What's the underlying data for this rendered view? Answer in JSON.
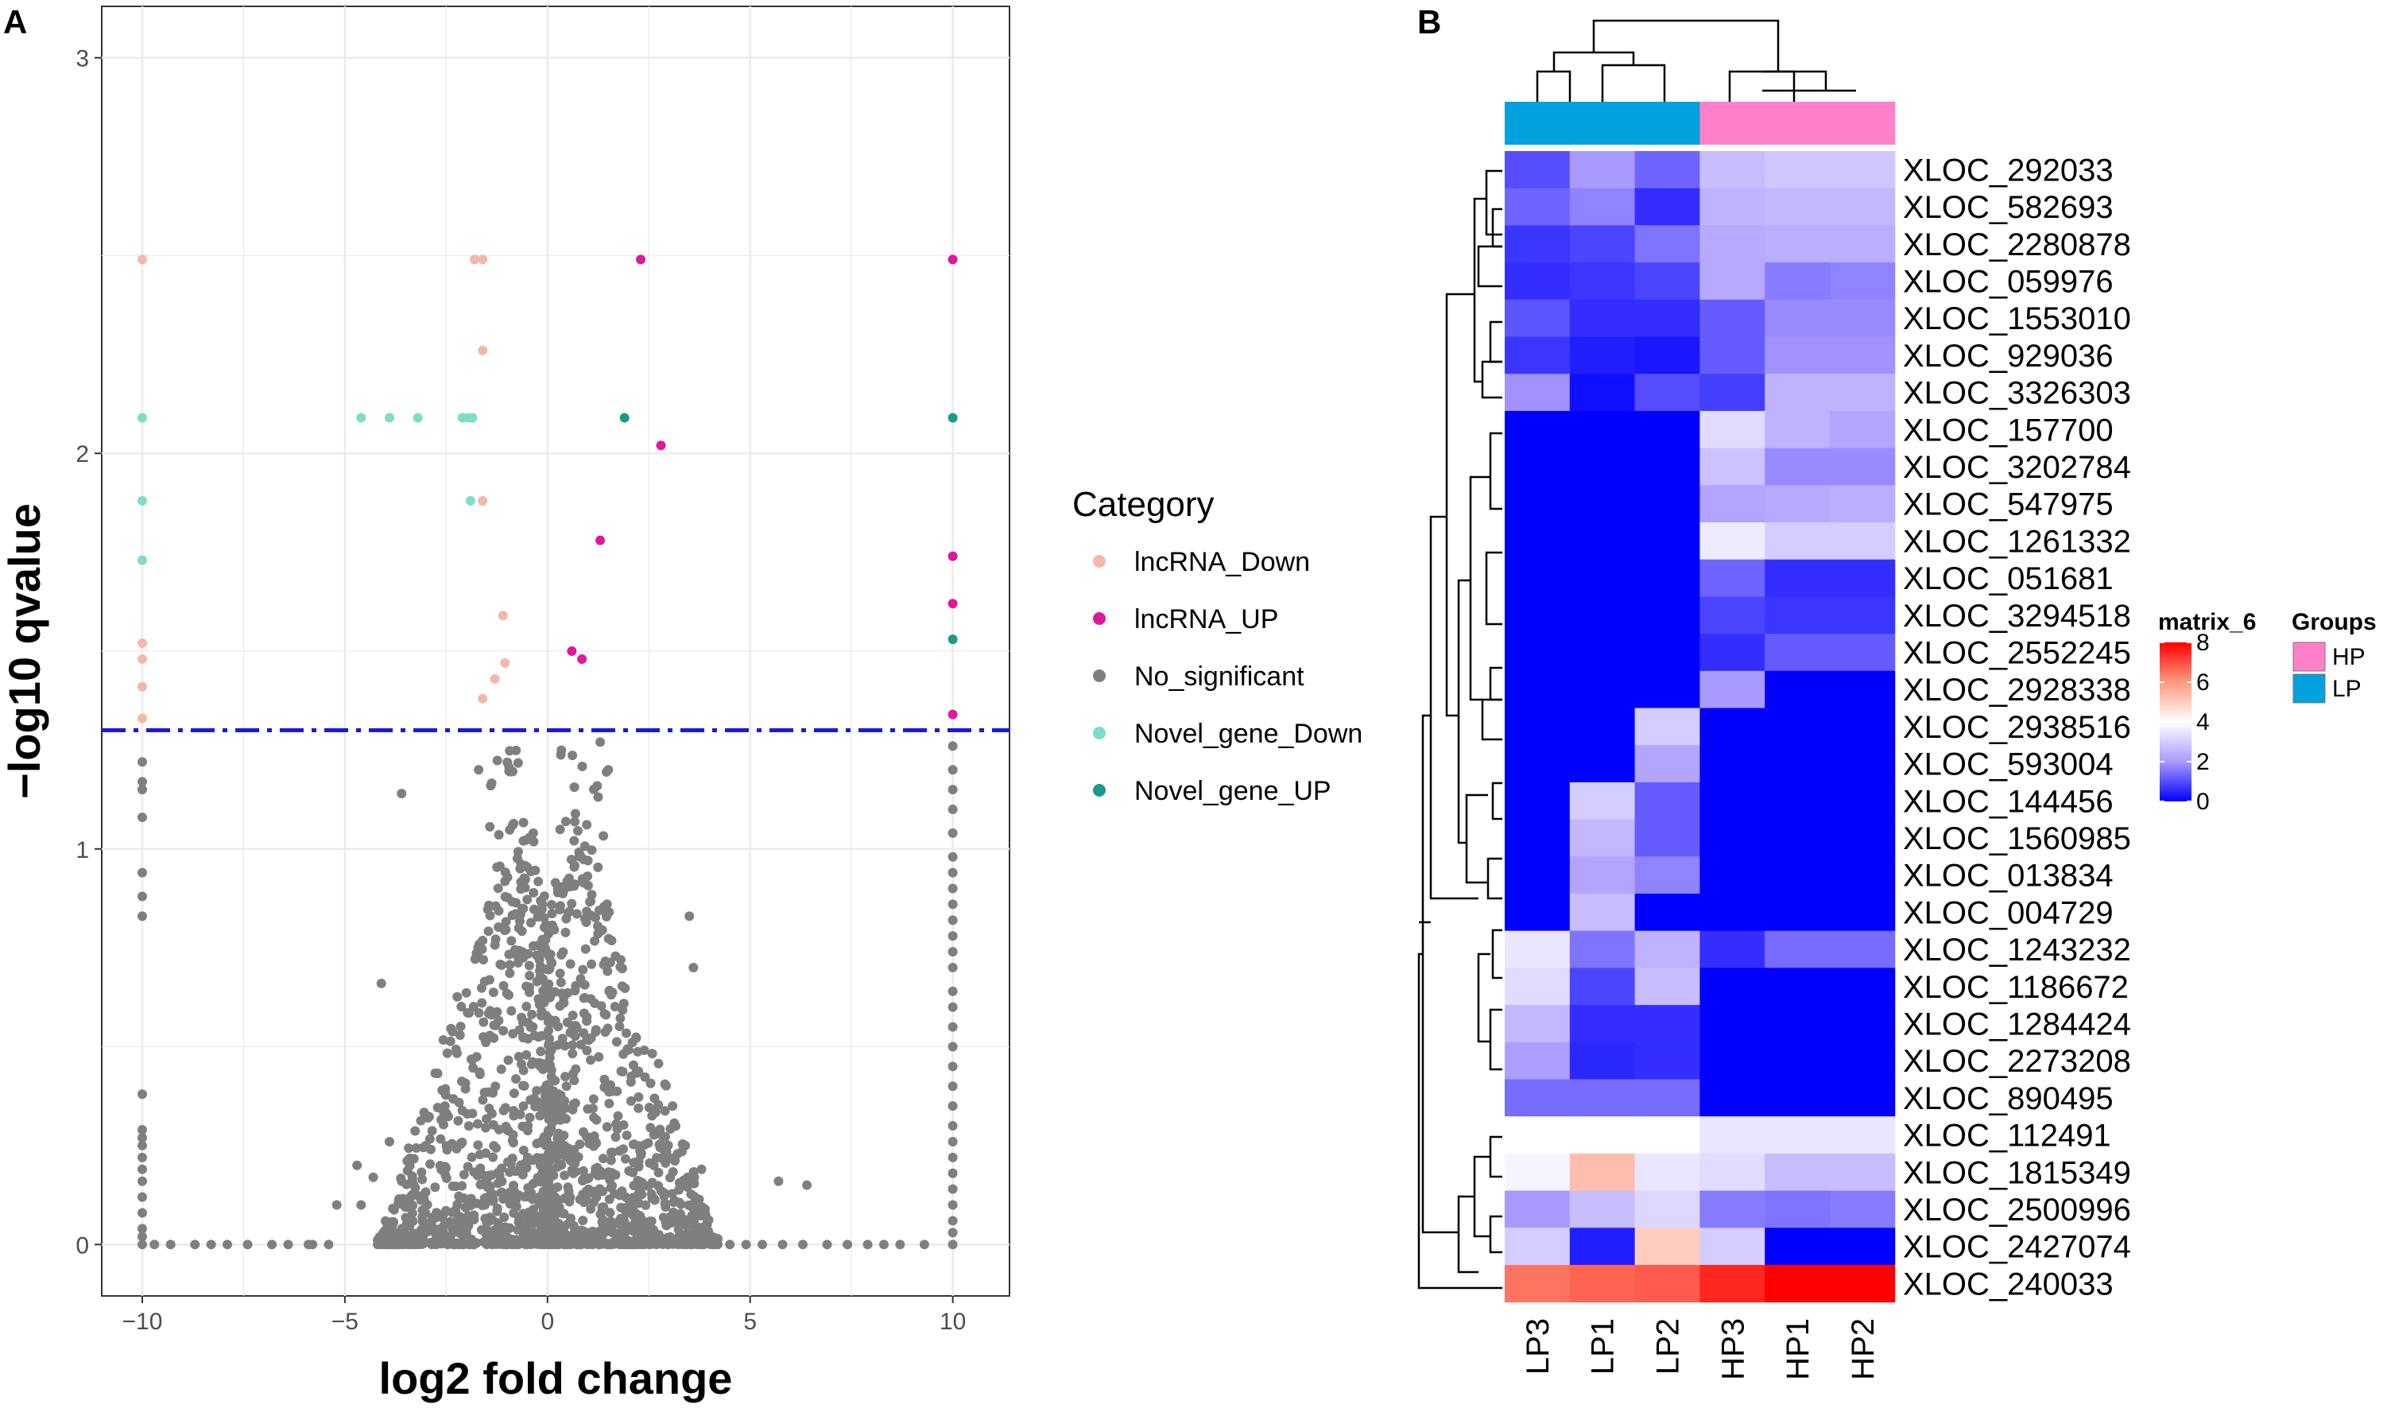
{
  "panels": {
    "a_label": "A",
    "b_label": "B"
  },
  "chart_data": [
    {
      "type": "scatter",
      "title": "",
      "xlabel": "log2 fold change",
      "ylabel": "−log10 qvalue",
      "xlim": [
        -11,
        11.4
      ],
      "ylim": [
        -0.13,
        3.13
      ],
      "xticks": [
        -10,
        -5,
        0,
        5,
        10
      ],
      "xtick_labels": [
        "−10",
        "−5",
        "0",
        "5",
        "10"
      ],
      "yticks": [
        0,
        1,
        2,
        3
      ],
      "ytick_labels": [
        "0",
        "1",
        "2",
        "3"
      ],
      "threshold_y": 1.3,
      "threshold_color": "#1a1adb",
      "legend_title": "Category",
      "categories": [
        {
          "name": "lncRNA_Down",
          "color": "#f4b8ab"
        },
        {
          "name": "lncRNA_UP",
          "color": "#e0189a"
        },
        {
          "name": "No_significant",
          "color": "#7f7f80"
        },
        {
          "name": "Novel_gene_Down",
          "color": "#7fdcc9"
        },
        {
          "name": "Novel_gene_UP",
          "color": "#1a9a88"
        }
      ],
      "series": [
        {
          "name": "lncRNA_Down",
          "points": [
            [
              -10,
              2.49
            ],
            [
              -1.8,
              2.49
            ],
            [
              -1.6,
              2.49
            ],
            [
              -1.6,
              2.26
            ],
            [
              -1.6,
              1.88
            ],
            [
              -10,
              1.52
            ],
            [
              -10,
              1.48
            ],
            [
              -10,
              1.41
            ],
            [
              -10,
              1.33
            ],
            [
              -1.1,
              1.59
            ],
            [
              -1.05,
              1.47
            ],
            [
              -1.3,
              1.43
            ],
            [
              -1.6,
              1.38
            ]
          ]
        },
        {
          "name": "lncRNA_UP",
          "points": [
            [
              2.3,
              2.49
            ],
            [
              10,
              2.49
            ],
            [
              2.8,
              2.02
            ],
            [
              1.3,
              1.78
            ],
            [
              10,
              1.74
            ],
            [
              10,
              1.62
            ],
            [
              0.6,
              1.5
            ],
            [
              0.85,
              1.48
            ],
            [
              10,
              1.34
            ]
          ]
        },
        {
          "name": "No_significant",
          "points": "dense cloud"
        },
        {
          "name": "Novel_gene_Down",
          "points": [
            [
              -10,
              2.09
            ],
            [
              -4.6,
              2.09
            ],
            [
              -3.9,
              2.09
            ],
            [
              -3.2,
              2.09
            ],
            [
              -2.1,
              2.09
            ],
            [
              -1.95,
              2.09
            ],
            [
              -1.85,
              2.09
            ],
            [
              -10,
              1.88
            ],
            [
              -1.9,
              1.88
            ],
            [
              -10,
              1.73
            ]
          ]
        },
        {
          "name": "Novel_gene_UP",
          "points": [
            [
              1.9,
              2.09
            ],
            [
              10,
              2.09
            ],
            [
              10,
              1.53
            ]
          ]
        }
      ]
    },
    {
      "type": "heatmap",
      "title": "",
      "columns": [
        "LP3",
        "LP1",
        "LP2",
        "HP3",
        "HP1",
        "HP2"
      ],
      "column_groups": [
        "LP",
        "LP",
        "LP",
        "HP",
        "HP",
        "HP"
      ],
      "rows": [
        "XLOC_292033",
        "XLOC_582693",
        "XLOC_2280878",
        "XLOC_059976",
        "XLOC_1553010",
        "XLOC_929036",
        "XLOC_3326303",
        "XLOC_157700",
        "XLOC_3202784",
        "XLOC_547975",
        "XLOC_1261332",
        "XLOC_051681",
        "XLOC_3294518",
        "XLOC_2552245",
        "XLOC_2928338",
        "XLOC_2938516",
        "XLOC_593004",
        "XLOC_144456",
        "XLOC_1560985",
        "XLOC_013834",
        "XLOC_004729",
        "XLOC_1243232",
        "XLOC_1186672",
        "XLOC_1284424",
        "XLOC_2273208",
        "XLOC_890495",
        "XLOC_112491",
        "XLOC_1815349",
        "XLOC_2500996",
        "XLOC_2427074",
        "XLOC_240033"
      ],
      "values": [
        [
          1.0,
          2.0,
          1.3,
          2.7,
          2.9,
          2.9
        ],
        [
          1.3,
          1.7,
          0.6,
          2.5,
          2.6,
          2.6
        ],
        [
          0.7,
          0.9,
          1.5,
          2.3,
          2.4,
          2.4
        ],
        [
          0.6,
          0.7,
          0.9,
          2.3,
          1.6,
          1.7
        ],
        [
          1.1,
          0.6,
          0.6,
          1.2,
          1.8,
          1.8
        ],
        [
          0.7,
          0.4,
          0.3,
          1.2,
          1.9,
          1.9
        ],
        [
          1.9,
          0.2,
          1.0,
          0.8,
          2.5,
          2.5
        ],
        [
          0,
          0,
          0,
          3.3,
          2.5,
          2.2
        ],
        [
          0,
          0,
          0,
          2.8,
          1.8,
          1.8
        ],
        [
          0,
          0,
          0,
          2.2,
          2.3,
          2.4
        ],
        [
          0,
          0,
          0,
          3.6,
          3.0,
          3.0
        ],
        [
          0,
          0,
          0,
          1.3,
          0.6,
          0.6
        ],
        [
          0,
          0,
          0,
          0.9,
          0.7,
          0.7
        ],
        [
          0,
          0,
          0,
          0.6,
          1.2,
          1.2
        ],
        [
          0,
          0,
          0,
          2.0,
          0,
          0
        ],
        [
          0,
          0,
          3.0,
          0,
          0,
          0
        ],
        [
          0,
          0,
          2.2,
          0,
          0,
          0
        ],
        [
          0,
          3.0,
          1.2,
          0,
          0,
          0
        ],
        [
          0,
          2.6,
          1.2,
          0,
          0,
          0
        ],
        [
          0,
          2.2,
          1.7,
          0,
          0,
          0
        ],
        [
          0,
          2.7,
          0,
          0,
          0,
          0
        ],
        [
          3.5,
          1.5,
          2.5,
          0.6,
          1.4,
          1.4
        ],
        [
          3.3,
          0.9,
          2.7,
          0,
          0,
          0
        ],
        [
          2.6,
          0.6,
          0.6,
          0,
          0,
          0
        ],
        [
          2.1,
          0.5,
          0.6,
          0,
          0,
          0
        ],
        [
          1.4,
          1.4,
          1.4,
          0,
          0,
          0
        ],
        [
          4.0,
          4.0,
          4.0,
          3.5,
          3.5,
          3.5
        ],
        [
          3.8,
          5.3,
          3.5,
          3.3,
          2.7,
          2.7
        ],
        [
          2.0,
          2.7,
          3.2,
          1.6,
          1.5,
          1.6
        ],
        [
          3.0,
          0.4,
          5.0,
          3.0,
          0,
          0
        ],
        [
          6.5,
          6.7,
          6.8,
          7.5,
          8.2,
          8.2
        ]
      ],
      "colorbar_title": "matrix_6",
      "colorbar_ticks": [
        0,
        2,
        4,
        6,
        8
      ],
      "colorbar_tick_labels": [
        "0",
        "2",
        "4",
        "6",
        "8"
      ],
      "colorbar_range": [
        0,
        8
      ],
      "groups_legend_title": "Groups",
      "groups": [
        {
          "name": "HP",
          "color": "#ff80c9"
        },
        {
          "name": "LP",
          "color": "#00a1dd"
        }
      ]
    }
  ]
}
